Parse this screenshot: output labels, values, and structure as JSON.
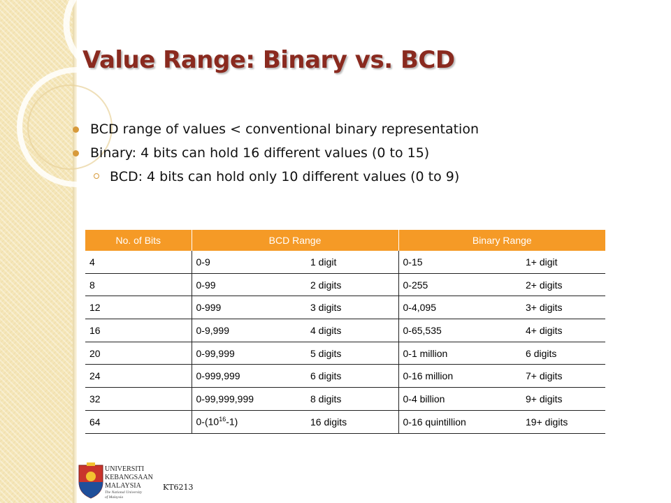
{
  "slide": {
    "title": "Value Range: Binary vs. BCD",
    "bullets": [
      {
        "text": "BCD range of values < conventional binary representation",
        "level": 1
      },
      {
        "text": "Binary: 4 bits can hold 16 different values (0 to 15)",
        "level": 1
      },
      {
        "text": "BCD: 4 bits can hold only 10 different values (0 to 9)",
        "level": 2
      }
    ],
    "table": {
      "headers": [
        "No. of Bits",
        "BCD Range",
        "Binary Range"
      ],
      "rows": [
        {
          "bits": "4",
          "bcd_range": "0-9",
          "bcd_digits": "1 digit",
          "bin_range": "0-15",
          "bin_digits": "1+ digit"
        },
        {
          "bits": "8",
          "bcd_range": "0-99",
          "bcd_digits": "2 digits",
          "bin_range": "0-255",
          "bin_digits": "2+ digits"
        },
        {
          "bits": "12",
          "bcd_range": "0-999",
          "bcd_digits": "3 digits",
          "bin_range": "0-4,095",
          "bin_digits": "3+ digits"
        },
        {
          "bits": "16",
          "bcd_range": "0-9,999",
          "bcd_digits": "4 digits",
          "bin_range": "0-65,535",
          "bin_digits": "4+ digits"
        },
        {
          "bits": "20",
          "bcd_range": "0-99,999",
          "bcd_digits": "5 digits",
          "bin_range": "0-1 million",
          "bin_digits": "6 digits"
        },
        {
          "bits": "24",
          "bcd_range": "0-999,999",
          "bcd_digits": "6 digits",
          "bin_range": "0-16 million",
          "bin_digits": "7+ digits"
        },
        {
          "bits": "32",
          "bcd_range": "0-99,999,999",
          "bcd_digits": "8 digits",
          "bin_range": "0-4 billion",
          "bin_digits": "9+ digits"
        },
        {
          "bits": "64",
          "bcd_range_prefix": "0-(10",
          "bcd_range_sup": "16",
          "bcd_range_suffix": "-1)",
          "bcd_digits": "16 digits",
          "bin_range": "0-16 quintillion",
          "bin_digits": "19+ digits"
        }
      ]
    }
  },
  "logo": {
    "lines": [
      "UNIVERSITI",
      "KEBANGSAAN",
      "MALAYSIA"
    ],
    "tagline": [
      "The National University",
      "of Malaysia"
    ]
  },
  "footer": {
    "text": "KT6213"
  },
  "colors": {
    "title": "#8a2a1f",
    "accent": "#d79a3b",
    "table_header": "#f59a26",
    "side_band": "#f5e6b8"
  }
}
